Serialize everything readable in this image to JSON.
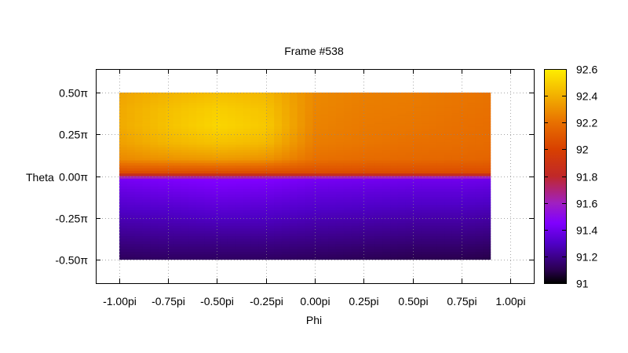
{
  "chart_data": {
    "type": "heatmap",
    "title": "Frame #538",
    "xlabel": "Phi",
    "ylabel": "Theta",
    "xlim": [
      -1.12,
      1.12
    ],
    "ylim": [
      -0.64,
      0.64
    ],
    "data_extent": {
      "x": [
        -1.0,
        0.9
      ],
      "y": [
        -0.5,
        0.5
      ]
    },
    "x_ticks": [
      {
        "value": -1.0,
        "label": "-1.00pi"
      },
      {
        "value": -0.75,
        "label": "-0.75pi"
      },
      {
        "value": -0.5,
        "label": "-0.50pi"
      },
      {
        "value": -0.25,
        "label": "-0.25pi"
      },
      {
        "value": 0.0,
        "label": "0.00pi"
      },
      {
        "value": 0.25,
        "label": "0.25pi"
      },
      {
        "value": 0.5,
        "label": "0.50pi"
      },
      {
        "value": 0.75,
        "label": "0.75pi"
      },
      {
        "value": 1.0,
        "label": "1.00pi"
      }
    ],
    "y_ticks": [
      {
        "value": 0.5,
        "label": "0.50π"
      },
      {
        "value": 0.25,
        "label": "0.25π"
      },
      {
        "value": 0.0,
        "label": "0.00π"
      },
      {
        "value": -0.25,
        "label": "-0.25π"
      },
      {
        "value": -0.5,
        "label": "-0.50π"
      }
    ],
    "grid": true,
    "colorbar": {
      "range": [
        91.0,
        92.6
      ],
      "ticks": [
        91,
        91.2,
        91.4,
        91.6,
        91.8,
        92,
        92.2,
        92.4,
        92.6
      ],
      "tick_labels": [
        "91",
        "91.2",
        "91.4",
        "91.6",
        "91.8",
        "92",
        "92.2",
        "92.4",
        "92.6"
      ],
      "palette": [
        {
          "v": 91.0,
          "color": "#000000"
        },
        {
          "v": 91.1,
          "color": "#2a0050"
        },
        {
          "v": 91.3,
          "color": "#5000c8"
        },
        {
          "v": 91.45,
          "color": "#8000ff"
        },
        {
          "v": 91.6,
          "color": "#a020c0"
        },
        {
          "v": 91.8,
          "color": "#c02828"
        },
        {
          "v": 92.0,
          "color": "#d84000"
        },
        {
          "v": 92.2,
          "color": "#e87000"
        },
        {
          "v": 92.4,
          "color": "#f2b000"
        },
        {
          "v": 92.6,
          "color": "#ffee00"
        }
      ]
    },
    "grid_values": {
      "x": [
        -1.0,
        -0.75,
        -0.5,
        -0.25,
        0.0,
        0.25,
        0.5,
        0.75,
        0.9
      ],
      "y": [
        0.5,
        0.4,
        0.3,
        0.2,
        0.1,
        0.02,
        -0.02,
        -0.1,
        -0.2,
        -0.3,
        -0.4,
        -0.5
      ],
      "z": [
        [
          92.36,
          92.41,
          92.44,
          92.42,
          92.28,
          92.25,
          92.24,
          92.22,
          92.21
        ],
        [
          92.38,
          92.45,
          92.5,
          92.46,
          92.27,
          92.24,
          92.23,
          92.21,
          92.2
        ],
        [
          92.38,
          92.46,
          92.52,
          92.48,
          92.26,
          92.23,
          92.22,
          92.2,
          92.19
        ],
        [
          92.35,
          92.42,
          92.46,
          92.43,
          92.24,
          92.22,
          92.2,
          92.19,
          92.18
        ],
        [
          92.28,
          92.31,
          92.33,
          92.31,
          92.2,
          92.18,
          92.17,
          92.16,
          92.15
        ],
        [
          92.05,
          92.05,
          92.05,
          92.05,
          92.05,
          92.05,
          92.05,
          92.05,
          92.05
        ],
        [
          91.42,
          91.44,
          91.46,
          91.45,
          91.42,
          91.41,
          91.4,
          91.4,
          91.39
        ],
        [
          91.36,
          91.38,
          91.4,
          91.39,
          91.36,
          91.35,
          91.34,
          91.34,
          91.33
        ],
        [
          91.3,
          91.31,
          91.33,
          91.32,
          91.3,
          91.29,
          91.28,
          91.28,
          91.27
        ],
        [
          91.24,
          91.25,
          91.26,
          91.26,
          91.24,
          91.23,
          91.22,
          91.22,
          91.21
        ],
        [
          91.18,
          91.19,
          91.19,
          91.19,
          91.18,
          91.17,
          91.16,
          91.16,
          91.15
        ],
        [
          91.12,
          91.13,
          91.13,
          91.13,
          91.12,
          91.11,
          91.1,
          91.1,
          91.09
        ]
      ]
    }
  }
}
